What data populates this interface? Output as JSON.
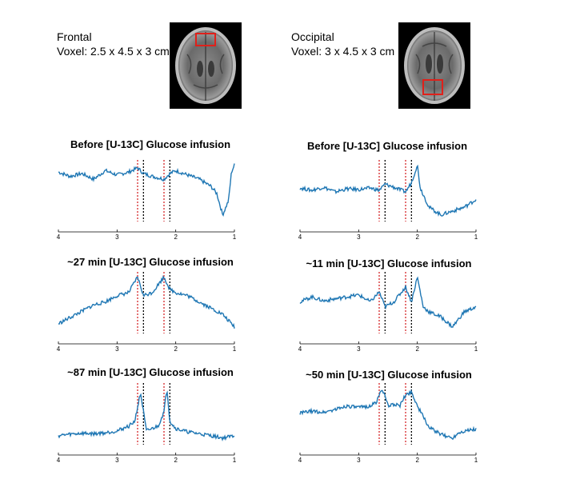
{
  "colors": {
    "trace": "#1f77b4",
    "red_marker": "#d62728",
    "black_marker": "#000000",
    "roi_box": "#e0201a"
  },
  "regions": [
    {
      "name": "Frontal",
      "voxel": "Voxel: 2.5 x 4.5 x 3 cm"
    },
    {
      "name": "Occipital",
      "voxel": "Voxel: 3 x 4.5 x 3 cm"
    }
  ],
  "chart_data": [
    {
      "type": "line",
      "title": "Before [U-13C] Glucose infusion",
      "xlim": [
        4,
        1
      ],
      "x_ticks": [
        "4",
        "3",
        "2",
        "1"
      ],
      "markers_red": [
        2.65,
        2.2
      ],
      "markers_black": [
        2.55,
        2.1
      ],
      "series": [
        {
          "x": [
            4.0,
            3.8,
            3.6,
            3.4,
            3.2,
            3.0,
            2.8,
            2.65,
            2.55,
            2.4,
            2.2,
            2.1,
            2.0,
            1.8,
            1.6,
            1.4,
            1.3,
            1.2,
            1.1,
            1.05,
            1.0
          ],
          "values": [
            0.05,
            0.02,
            0.04,
            0.0,
            0.06,
            0.03,
            0.05,
            0.08,
            0.04,
            0.02,
            0.0,
            0.04,
            0.06,
            0.03,
            0.0,
            -0.05,
            -0.1,
            -0.25,
            -0.15,
            0.05,
            0.1
          ]
        }
      ]
    },
    {
      "type": "line",
      "title": "Before [U-13C] Glucose infusion",
      "xlim": [
        4,
        1
      ],
      "x_ticks": [
        "4",
        "3",
        "2",
        "1"
      ],
      "markers_red": [
        2.65,
        2.2
      ],
      "markers_black": [
        2.55,
        2.1
      ],
      "series": [
        {
          "x": [
            4.0,
            3.8,
            3.6,
            3.4,
            3.2,
            3.0,
            2.8,
            2.65,
            2.55,
            2.4,
            2.2,
            2.1,
            2.0,
            1.95,
            1.8,
            1.6,
            1.4,
            1.2,
            1.0
          ],
          "values": [
            0.05,
            0.02,
            0.06,
            0.0,
            0.04,
            0.03,
            0.05,
            0.02,
            0.1,
            0.06,
            0.0,
            0.12,
            0.35,
            0.05,
            -0.2,
            -0.3,
            -0.25,
            -0.2,
            -0.1
          ]
        }
      ]
    },
    {
      "type": "line",
      "title": "~27 min [U-13C] Glucose infusion",
      "xlim": [
        4,
        1
      ],
      "x_ticks": [
        "4",
        "3",
        "2",
        "1"
      ],
      "markers_red": [
        2.65,
        2.2
      ],
      "markers_black": [
        2.55,
        2.1
      ],
      "series": [
        {
          "x": [
            4.0,
            3.8,
            3.6,
            3.4,
            3.2,
            3.0,
            2.8,
            2.65,
            2.55,
            2.4,
            2.2,
            2.1,
            2.0,
            1.8,
            1.6,
            1.4,
            1.2,
            1.1,
            1.0
          ],
          "values": [
            -0.15,
            -0.05,
            0.05,
            0.15,
            0.2,
            0.3,
            0.35,
            0.6,
            0.3,
            0.35,
            0.6,
            0.4,
            0.35,
            0.3,
            0.2,
            0.1,
            0.0,
            -0.1,
            -0.2
          ]
        }
      ]
    },
    {
      "type": "line",
      "title": "~11 min [U-13C] Glucose  infusion",
      "xlim": [
        4,
        1
      ],
      "x_ticks": [
        "4",
        "3",
        "2",
        "1"
      ],
      "markers_red": [
        2.65,
        2.2
      ],
      "markers_black": [
        2.55,
        2.1
      ],
      "series": [
        {
          "x": [
            4.0,
            3.8,
            3.6,
            3.4,
            3.2,
            3.0,
            2.8,
            2.65,
            2.55,
            2.4,
            2.2,
            2.1,
            2.0,
            1.9,
            1.8,
            1.6,
            1.4,
            1.2,
            1.0
          ],
          "values": [
            0.05,
            0.1,
            0.06,
            0.08,
            0.1,
            0.12,
            0.05,
            0.15,
            0.0,
            0.05,
            0.2,
            0.05,
            0.3,
            0.0,
            -0.05,
            -0.1,
            -0.2,
            -0.05,
            0.0
          ]
        }
      ]
    },
    {
      "type": "line",
      "title": "~87 min [U-13C] Glucose infusion",
      "xlim": [
        4,
        1
      ],
      "x_ticks": [
        "4",
        "3",
        "2",
        "1"
      ],
      "markers_red": [
        2.65,
        2.2
      ],
      "markers_black": [
        2.55,
        2.1
      ],
      "series": [
        {
          "x": [
            4.0,
            3.8,
            3.6,
            3.4,
            3.2,
            3.0,
            2.8,
            2.7,
            2.6,
            2.5,
            2.4,
            2.3,
            2.2,
            2.15,
            2.1,
            2.0,
            1.8,
            1.6,
            1.4,
            1.2,
            1.0
          ],
          "values": [
            0.0,
            0.03,
            0.05,
            0.04,
            0.06,
            0.1,
            0.2,
            0.3,
            0.9,
            0.1,
            0.15,
            0.2,
            0.5,
            1.0,
            0.3,
            0.15,
            0.08,
            0.04,
            0.0,
            -0.05,
            0.0
          ]
        }
      ]
    },
    {
      "type": "line",
      "title": "~50 min [U-13C] Glucose infusion",
      "xlim": [
        4,
        1
      ],
      "x_ticks": [
        "4",
        "3",
        "2",
        "1"
      ],
      "markers_red": [
        2.65,
        2.2
      ],
      "markers_black": [
        2.55,
        2.1
      ],
      "series": [
        {
          "x": [
            4.0,
            3.8,
            3.6,
            3.4,
            3.2,
            3.0,
            2.8,
            2.7,
            2.6,
            2.5,
            2.4,
            2.3,
            2.2,
            2.1,
            2.0,
            1.9,
            1.8,
            1.6,
            1.4,
            1.3,
            1.2,
            1.0
          ],
          "values": [
            0.1,
            0.15,
            0.12,
            0.2,
            0.3,
            0.25,
            0.3,
            0.4,
            0.8,
            0.3,
            0.35,
            0.3,
            0.6,
            0.7,
            0.3,
            0.0,
            -0.3,
            -0.5,
            -0.6,
            -0.45,
            -0.4,
            -0.35
          ]
        }
      ]
    }
  ]
}
